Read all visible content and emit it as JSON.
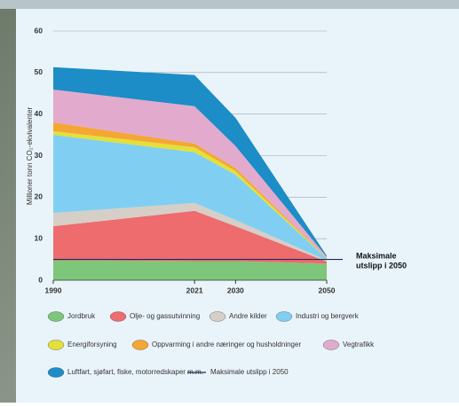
{
  "chart_data": {
    "type": "stacked-area",
    "y_label": "Millioner tonn CO₂-ekvivalenter",
    "x": [
      1990,
      2021,
      2030,
      2050
    ],
    "xlim": [
      1990,
      2050
    ],
    "xticks": [
      1990,
      2021,
      2030,
      2050
    ],
    "ylim": [
      0,
      60
    ],
    "yticks": [
      0,
      10,
      20,
      30,
      40,
      50,
      60
    ],
    "grid": true,
    "series": [
      {
        "name": "Jordbruk",
        "color": "#7dc67a",
        "values": [
          4.8,
          4.6,
          4.6,
          4.0
        ]
      },
      {
        "name": "Olje- og gassutvinning",
        "color": "#ee6b6e",
        "values": [
          8.2,
          12.1,
          8.4,
          0.5
        ]
      },
      {
        "name": "Andre kilder",
        "color": "#d6cfc7",
        "values": [
          3.2,
          1.9,
          1.5,
          0.3
        ]
      },
      {
        "name": "Industri og bergverk",
        "color": "#80cff3",
        "values": [
          18.8,
          12.2,
          10.9,
          0.4
        ]
      },
      {
        "name": "Energiforsyning",
        "color": "#e3e03a",
        "values": [
          0.9,
          1.2,
          0.9,
          0.1
        ]
      },
      {
        "name": "Oppvarming i andre næringer og husholdninger",
        "color": "#f5a633",
        "values": [
          2.1,
          0.9,
          0.7,
          0.1
        ]
      },
      {
        "name": "Vegtrafikk",
        "color": "#e2aacd",
        "values": [
          7.9,
          9.0,
          5.3,
          0.2
        ]
      },
      {
        "name": "Luftfart, sjøfart, fiske, motorredskaper m.m.",
        "color": "#1c8dc6",
        "values": [
          5.4,
          7.5,
          6.8,
          0.3
        ]
      }
    ],
    "max_line": {
      "name": "Maksimale utslipp i 2050",
      "value": 5,
      "color": "#1e2a5a"
    },
    "annotation": [
      "Maksimale",
      "utslipp i 2050"
    ]
  }
}
